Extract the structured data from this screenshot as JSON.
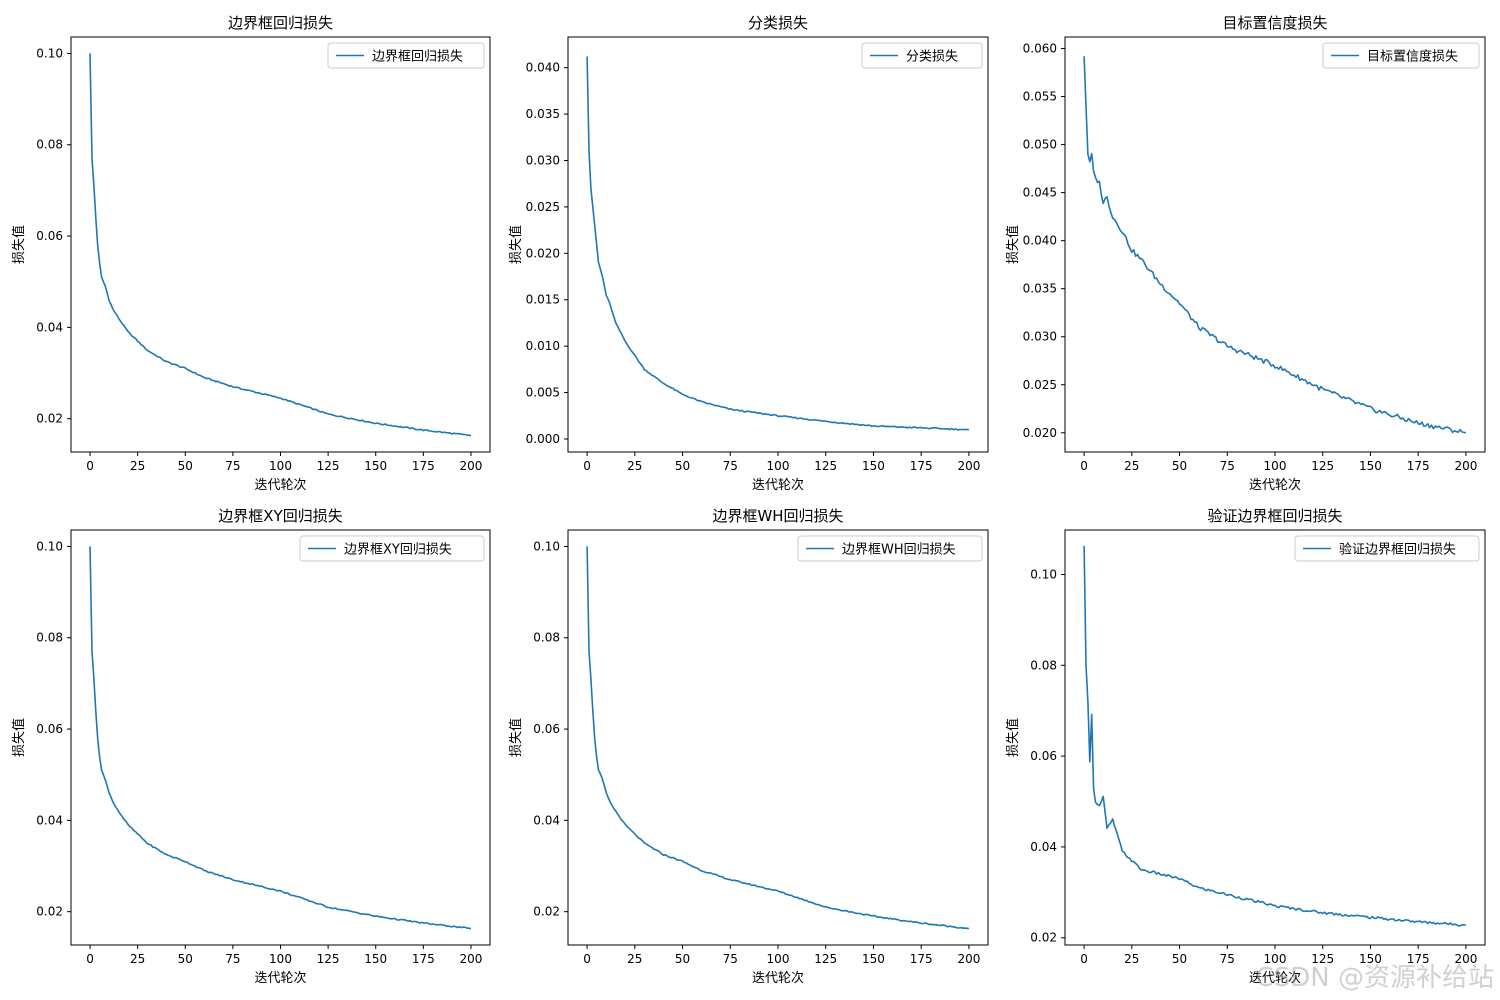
{
  "watermark": "CSDN @资源补给站",
  "colors": {
    "line": "#1f77b4",
    "axis": "#000000",
    "legend_border": "#cccccc"
  },
  "chart_data": [
    {
      "type": "line",
      "title": "边界框回归损失",
      "xlabel": "迭代轮次",
      "ylabel": "损失值",
      "legend": "top-right",
      "xlim": [
        -10,
        210
      ],
      "ylim": [
        0.0127,
        0.1036
      ],
      "xticks": [
        0,
        25,
        50,
        75,
        100,
        125,
        150,
        175,
        200
      ],
      "yticks": [
        0.02,
        0.04,
        0.06,
        0.08,
        0.1
      ],
      "ytick_labels": [
        "0.02",
        "0.04",
        "0.06",
        "0.08",
        "0.10"
      ],
      "series": [
        {
          "name": "边界框回归损失",
          "x": [
            0,
            1,
            2,
            3,
            4,
            5,
            6,
            8,
            10,
            12,
            15,
            20,
            25,
            30,
            40,
            50,
            60,
            75,
            100,
            125,
            150,
            175,
            200
          ],
          "values": [
            0.1,
            0.077,
            0.071,
            0.064,
            0.058,
            0.054,
            0.051,
            0.049,
            0.046,
            0.044,
            0.042,
            0.039,
            0.037,
            0.035,
            0.0325,
            0.031,
            0.029,
            0.027,
            0.0245,
            0.021,
            0.019,
            0.0175,
            0.0163
          ]
        }
      ]
    },
    {
      "type": "line",
      "title": "分类损失",
      "xlabel": "迭代轮次",
      "ylabel": "损失值",
      "legend": "top-right",
      "xlim": [
        -10,
        210
      ],
      "ylim": [
        -0.0014,
        0.0433
      ],
      "xticks": [
        0,
        25,
        50,
        75,
        100,
        125,
        150,
        175,
        200
      ],
      "yticks": [
        0.0,
        0.005,
        0.01,
        0.015,
        0.02,
        0.025,
        0.03,
        0.035,
        0.04
      ],
      "ytick_labels": [
        "0.000",
        "0.005",
        "0.010",
        "0.015",
        "0.020",
        "0.025",
        "0.030",
        "0.035",
        "0.040"
      ],
      "series": [
        {
          "name": "分类损失",
          "x": [
            0,
            1,
            2,
            3,
            4,
            5,
            6,
            8,
            10,
            12,
            15,
            20,
            25,
            30,
            40,
            50,
            60,
            75,
            100,
            125,
            150,
            175,
            200
          ],
          "values": [
            0.0412,
            0.031,
            0.027,
            0.025,
            0.023,
            0.021,
            0.019,
            0.0175,
            0.0155,
            0.0145,
            0.0125,
            0.0105,
            0.009,
            0.0075,
            0.006,
            0.0048,
            0.004,
            0.0032,
            0.0025,
            0.0019,
            0.0014,
            0.0012,
            0.001
          ]
        }
      ]
    },
    {
      "type": "line",
      "title": "目标置信度损失",
      "xlabel": "迭代轮次",
      "ylabel": "损失值",
      "legend": "top-right",
      "xlim": [
        -10,
        210
      ],
      "ylim": [
        0.018,
        0.0612
      ],
      "xticks": [
        0,
        25,
        50,
        75,
        100,
        125,
        150,
        175,
        200
      ],
      "yticks": [
        0.02,
        0.025,
        0.03,
        0.035,
        0.04,
        0.045,
        0.05,
        0.055,
        0.06
      ],
      "ytick_labels": [
        "0.020",
        "0.025",
        "0.030",
        "0.035",
        "0.040",
        "0.045",
        "0.050",
        "0.055",
        "0.060"
      ],
      "series": [
        {
          "name": "目标置信度损失",
          "x": [
            0,
            1,
            2,
            3,
            4,
            5,
            6,
            8,
            10,
            12,
            15,
            20,
            25,
            30,
            40,
            50,
            60,
            75,
            100,
            125,
            150,
            175,
            200
          ],
          "values": [
            0.0592,
            0.054,
            0.049,
            0.048,
            0.049,
            0.047,
            0.0465,
            0.046,
            0.044,
            0.0445,
            0.0425,
            0.041,
            0.039,
            0.038,
            0.0355,
            0.0335,
            0.031,
            0.029,
            0.027,
            0.0245,
            0.0225,
            0.021,
            0.02
          ]
        }
      ]
    },
    {
      "type": "line",
      "title": "边界框XY回归损失",
      "xlabel": "迭代轮次",
      "ylabel": "损失值",
      "legend": "top-right",
      "xlim": [
        -10,
        210
      ],
      "ylim": [
        0.0127,
        0.1036
      ],
      "xticks": [
        0,
        25,
        50,
        75,
        100,
        125,
        150,
        175,
        200
      ],
      "yticks": [
        0.02,
        0.04,
        0.06,
        0.08,
        0.1
      ],
      "ytick_labels": [
        "0.02",
        "0.04",
        "0.06",
        "0.08",
        "0.10"
      ],
      "series": [
        {
          "name": "边界框XY回归损失",
          "x": [
            0,
            1,
            2,
            3,
            4,
            5,
            6,
            8,
            10,
            12,
            15,
            20,
            25,
            30,
            40,
            50,
            60,
            75,
            100,
            125,
            150,
            175,
            200
          ],
          "values": [
            0.1,
            0.077,
            0.071,
            0.064,
            0.058,
            0.054,
            0.051,
            0.049,
            0.046,
            0.044,
            0.042,
            0.039,
            0.037,
            0.035,
            0.0325,
            0.031,
            0.029,
            0.027,
            0.0245,
            0.021,
            0.019,
            0.0175,
            0.0163
          ]
        }
      ]
    },
    {
      "type": "line",
      "title": "边界框WH回归损失",
      "xlabel": "迭代轮次",
      "ylabel": "损失值",
      "legend": "top-right",
      "xlim": [
        -10,
        210
      ],
      "ylim": [
        0.0127,
        0.1036
      ],
      "xticks": [
        0,
        25,
        50,
        75,
        100,
        125,
        150,
        175,
        200
      ],
      "yticks": [
        0.02,
        0.04,
        0.06,
        0.08,
        0.1
      ],
      "ytick_labels": [
        "0.02",
        "0.04",
        "0.06",
        "0.08",
        "0.10"
      ],
      "series": [
        {
          "name": "边界框WH回归损失",
          "x": [
            0,
            1,
            2,
            3,
            4,
            5,
            6,
            8,
            10,
            12,
            15,
            20,
            25,
            30,
            40,
            50,
            60,
            75,
            100,
            125,
            150,
            175,
            200
          ],
          "values": [
            0.1,
            0.077,
            0.071,
            0.064,
            0.058,
            0.054,
            0.051,
            0.049,
            0.046,
            0.044,
            0.042,
            0.039,
            0.037,
            0.035,
            0.0325,
            0.031,
            0.029,
            0.027,
            0.0245,
            0.021,
            0.019,
            0.0175,
            0.0163
          ]
        }
      ]
    },
    {
      "type": "line",
      "title": "验证边界框回归损失",
      "xlabel": "迭代轮次",
      "ylabel": "损失值",
      "legend": "top-right",
      "xlim": [
        -10,
        210
      ],
      "ylim": [
        0.0184,
        0.1098
      ],
      "xticks": [
        0,
        25,
        50,
        75,
        100,
        125,
        150,
        175,
        200
      ],
      "yticks": [
        0.02,
        0.04,
        0.06,
        0.08,
        0.1
      ],
      "ytick_labels": [
        "0.02",
        "0.04",
        "0.06",
        "0.08",
        "0.10"
      ],
      "series": [
        {
          "name": "验证边界框回归损失",
          "x": [
            0,
            1,
            2,
            3,
            4,
            5,
            6,
            8,
            10,
            12,
            15,
            20,
            25,
            30,
            40,
            50,
            60,
            75,
            100,
            125,
            150,
            175,
            200
          ],
          "values": [
            0.1063,
            0.08,
            0.072,
            0.059,
            0.069,
            0.053,
            0.05,
            0.049,
            0.051,
            0.044,
            0.046,
            0.039,
            0.037,
            0.035,
            0.034,
            0.033,
            0.031,
            0.0295,
            0.027,
            0.0255,
            0.0245,
            0.0235,
            0.0228
          ]
        }
      ]
    }
  ]
}
